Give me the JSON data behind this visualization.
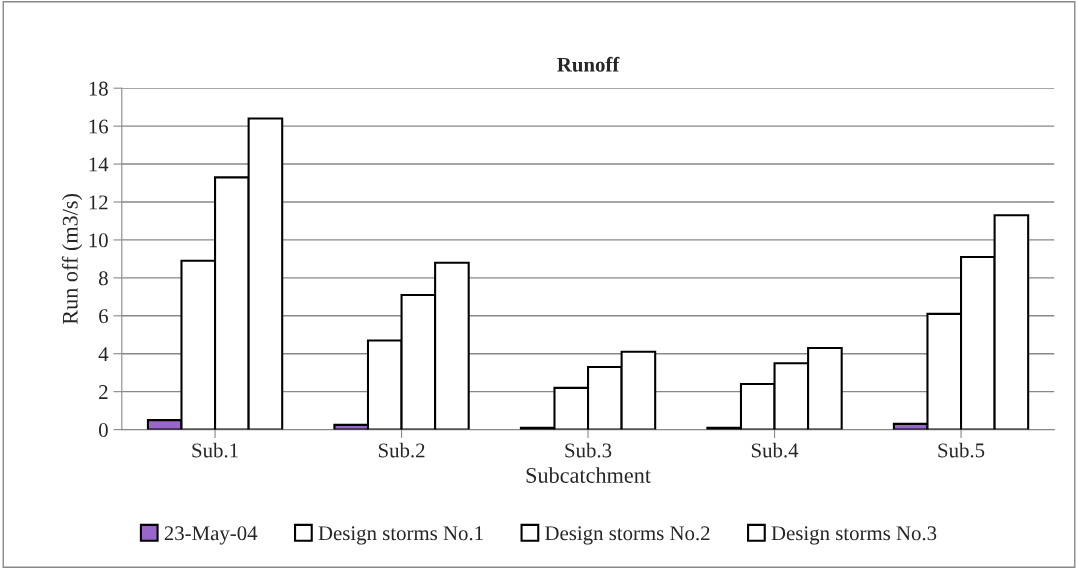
{
  "chart_data": {
    "type": "bar",
    "title": "Runoff",
    "xlabel": "Subcatchment",
    "ylabel": "Run off (m3/s)",
    "categories": [
      "Sub.1",
      "Sub.2",
      "Sub.3",
      "Sub.4",
      "Sub.5"
    ],
    "series": [
      {
        "name": "23-May-04",
        "color": "#9966cc",
        "values": [
          0.5,
          0.25,
          0.1,
          0.1,
          0.3
        ]
      },
      {
        "name": "Design storms No.1",
        "color": "#ffffff",
        "values": [
          8.9,
          4.7,
          2.2,
          2.4,
          6.1
        ]
      },
      {
        "name": "Design storms No.2",
        "color": "#ffffff",
        "values": [
          13.3,
          7.1,
          3.3,
          3.5,
          9.1
        ]
      },
      {
        "name": "Design storms No.3",
        "color": "#ffffff",
        "values": [
          16.4,
          8.8,
          4.1,
          4.3,
          11.3
        ]
      }
    ],
    "ylim": [
      0,
      18
    ],
    "yticks": [
      0,
      2,
      4,
      6,
      8,
      10,
      12,
      14,
      16,
      18
    ],
    "grid": "y",
    "legend": "bottom"
  }
}
